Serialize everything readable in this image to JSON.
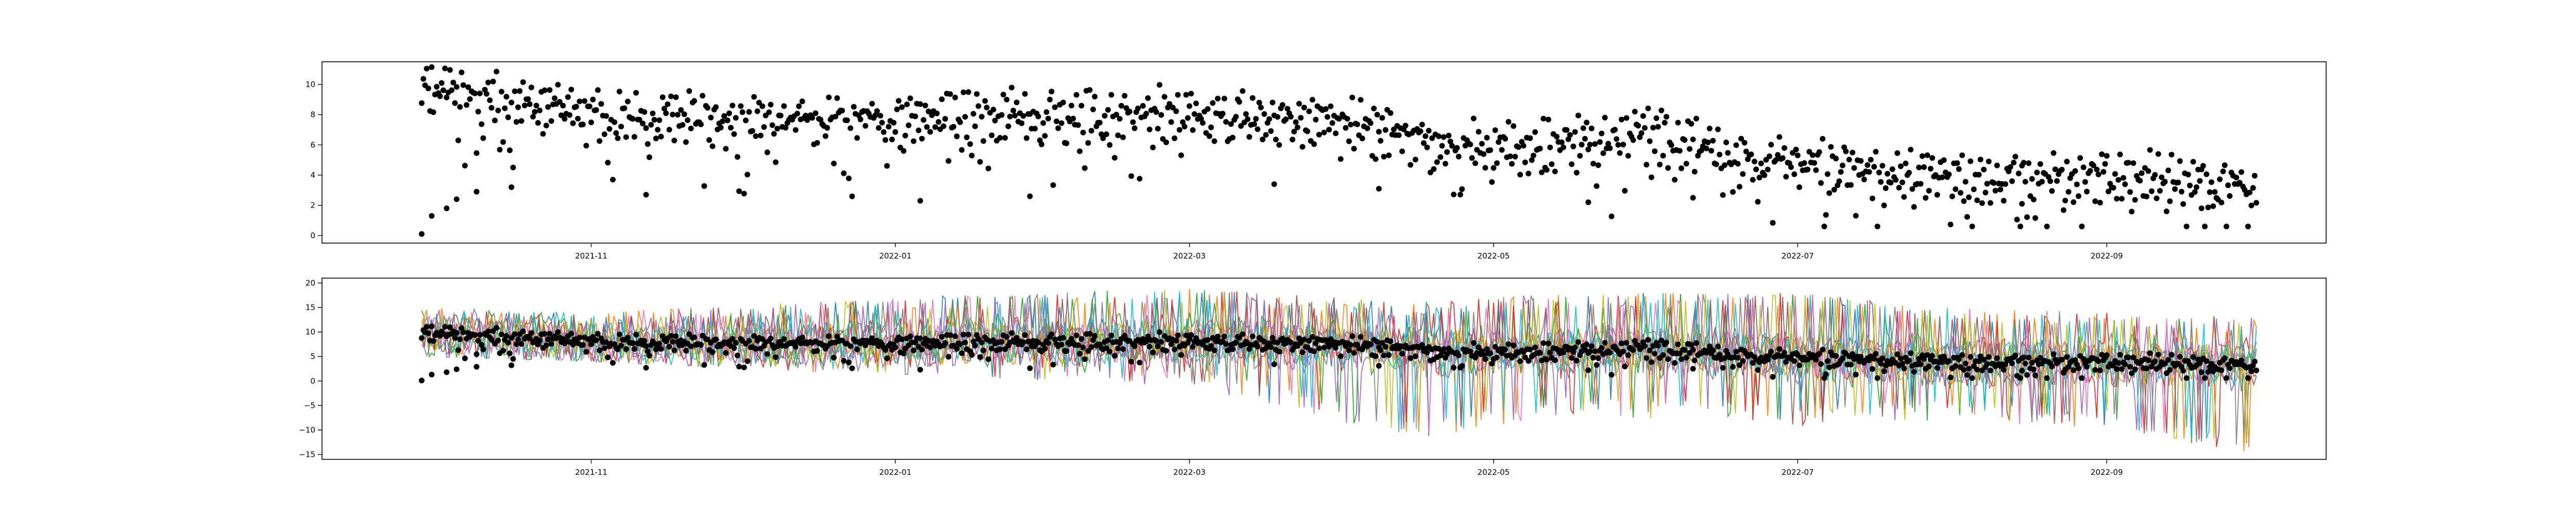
{
  "colors": {
    "background": "#ffffff",
    "frame": "#000000",
    "scatter": "#000000",
    "line_cycle": [
      "#1f77b4",
      "#ff7f0e",
      "#2ca02c",
      "#d62728",
      "#9467bd",
      "#8c564b",
      "#e377c2",
      "#7f7f7f",
      "#bcbd22",
      "#17becf"
    ]
  },
  "chart_data": [
    {
      "type": "scatter",
      "title": "",
      "xlabel": "",
      "ylabel": "",
      "xlim": [
        "2021-09-08",
        "2022-10-15"
      ],
      "ylim": [
        -0.5,
        11.5
      ],
      "grid": false,
      "legend": "none",
      "x_ticks": [
        "2021-11",
        "2022-01",
        "2022-03",
        "2022-05",
        "2022-07",
        "2022-09"
      ],
      "x_tick_dates": [
        "2021-11-01",
        "2022-01-01",
        "2022-03-01",
        "2022-05-01",
        "2022-07-01",
        "2022-09-01"
      ],
      "y_ticks": [
        "0",
        "2",
        "4",
        "6",
        "8",
        "10"
      ],
      "series": [
        {
          "color": "#000000",
          "dense_date_range": [
            "2021-09-28",
            "2022-10-01"
          ],
          "trend_dates": [
            "2021-09-28",
            "2021-10-15",
            "2021-11-01",
            "2021-12-01",
            "2022-01-01",
            "2022-02-01",
            "2022-03-01",
            "2022-04-01",
            "2022-05-01",
            "2022-06-01",
            "2022-07-01",
            "2022-08-01",
            "2022-09-01",
            "2022-10-01"
          ],
          "trend_values": [
            9.8,
            9.0,
            7.8,
            7.6,
            7.8,
            7.9,
            8.1,
            7.3,
            5.6,
            6.6,
            4.7,
            3.8,
            4.0,
            3.2
          ],
          "outliers": [
            {
              "x": "2021-09-28",
              "y": 0.1
            },
            {
              "x": "2021-09-30",
              "y": 1.3
            },
            {
              "x": "2021-10-03",
              "y": 1.8
            },
            {
              "x": "2021-10-05",
              "y": 2.4
            },
            {
              "x": "2021-10-09",
              "y": 2.9
            },
            {
              "x": "2021-10-16",
              "y": 3.2
            },
            {
              "x": "2021-11-12",
              "y": 2.7
            },
            {
              "x": "2022-01-06",
              "y": 2.3
            },
            {
              "x": "2022-01-28",
              "y": 2.6
            },
            {
              "x": "2022-03-18",
              "y": 3.4
            },
            {
              "x": "2022-04-08",
              "y": 3.1
            },
            {
              "x": "2022-05-20",
              "y": 2.2
            },
            {
              "x": "2022-06-10",
              "y": 2.5
            },
            {
              "x": "2022-08-15",
              "y": 2.1
            },
            {
              "x": "2022-09-20",
              "y": 1.8
            }
          ]
        }
      ]
    },
    {
      "type": "line",
      "title": "",
      "xlabel": "",
      "ylabel": "",
      "xlim": [
        "2021-09-08",
        "2022-10-15"
      ],
      "ylim": [
        -16,
        21
      ],
      "grid": false,
      "legend": "none",
      "x_ticks": [
        "2021-11",
        "2022-01",
        "2022-03",
        "2022-05",
        "2022-07",
        "2022-09"
      ],
      "x_tick_dates": [
        "2021-11-01",
        "2022-01-01",
        "2022-03-01",
        "2022-05-01",
        "2022-07-01",
        "2022-09-01"
      ],
      "y_ticks": [
        "−15",
        "−10",
        "−5",
        "0",
        "5",
        "10",
        "15",
        "20"
      ],
      "y_tick_values": [
        -15,
        -10,
        -5,
        0,
        5,
        10,
        15,
        20
      ],
      "line_series_count": 10,
      "line_envelope": {
        "dates": [
          "2021-09-28",
          "2021-11-01",
          "2022-01-01",
          "2022-03-01",
          "2022-04-15",
          "2022-05-15",
          "2022-07-01",
          "2022-08-01",
          "2022-09-01",
          "2022-10-01"
        ],
        "upper": [
          15,
          14,
          17,
          19,
          16,
          18,
          18,
          15,
          14,
          13
        ],
        "lower": [
          5,
          4,
          1,
          -1,
          -12,
          -7,
          -9,
          -8,
          -10,
          -15
        ]
      },
      "scatter_overlay": {
        "color": "#000000",
        "same_as_chart": 0
      }
    }
  ]
}
